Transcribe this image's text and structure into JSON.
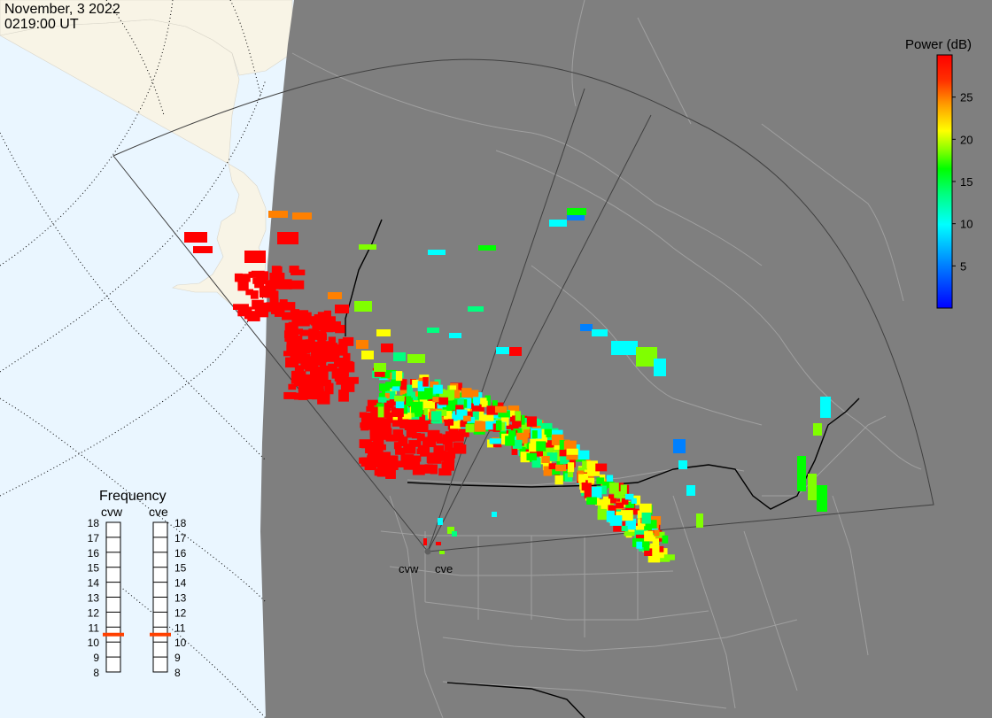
{
  "header": {
    "date": "November, 3 2022",
    "time": "0219:00 UT"
  },
  "colorbar": {
    "title": "Power (dB)",
    "ticks": [
      "25",
      "20",
      "15",
      "10",
      "5"
    ],
    "tick_values": [
      25,
      20,
      15,
      10,
      5
    ],
    "range": [
      0,
      30
    ],
    "colors": [
      "#0000ff",
      "#0080ff",
      "#00ffff",
      "#00ff80",
      "#00ff00",
      "#80ff00",
      "#ffff00",
      "#ffc000",
      "#ff8000",
      "#ff0000"
    ]
  },
  "frequency_panel": {
    "title": "Frequency",
    "left_label": "cvw",
    "right_label": "cve",
    "levels": [
      "18",
      "17",
      "16",
      "15",
      "14",
      "13",
      "12",
      "11",
      "10",
      "9",
      "8"
    ],
    "level_values": [
      18,
      17,
      16,
      15,
      14,
      13,
      12,
      11,
      10,
      9,
      8
    ],
    "cvw_value": 10.5,
    "cve_value": 10.5,
    "marker_color": "#ff4000"
  },
  "radar_sites": {
    "west": "cvw",
    "east": "cve"
  },
  "map_colors": {
    "ocean": "#eaf6ff",
    "land_day": "#f8f4e6",
    "night": "#7f7f7f",
    "borders": "#a0a0a0",
    "fov": "#404040"
  }
}
